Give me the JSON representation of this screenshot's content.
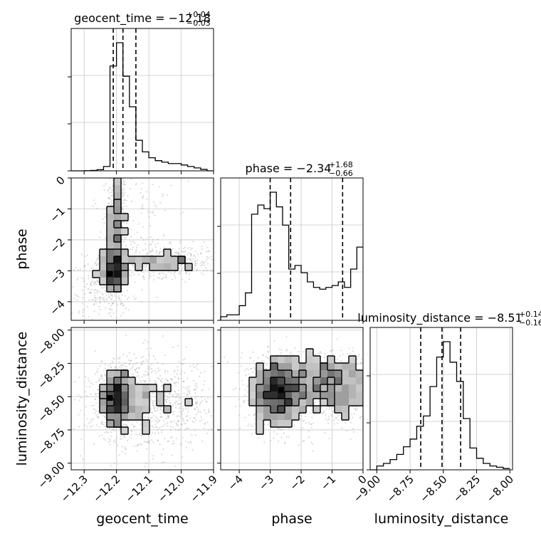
{
  "chart_data": {
    "type": "corner",
    "parameters": [
      "geocent_time",
      "phase",
      "luminosity_distance"
    ],
    "axis_labels": {
      "geocent_time": "geocent_time",
      "phase": "phase",
      "luminosity_distance": "luminosity_distance"
    },
    "titles": [
      {
        "param": "geocent_time",
        "prefix": "geocent_time = ",
        "median": "−12.18",
        "plus": "+0.04",
        "minus": "−0.03"
      },
      {
        "param": "phase",
        "prefix": "phase = ",
        "median": "−2.34",
        "plus": "+1.68",
        "minus": "−0.66"
      },
      {
        "param": "luminosity_distance",
        "prefix": "luminosity_distance = ",
        "median": "−8.51",
        "plus": "+0.14",
        "minus": "−0.16"
      }
    ],
    "ranges": {
      "geocent_time": [
        -12.34,
        -11.9
      ],
      "phase": [
        -4.6,
        0.0
      ],
      "luminosity_distance": [
        -9.05,
        -7.98
      ]
    },
    "ticks": {
      "geocent_time": [
        {
          "v": -12.3,
          "label": "−12.3"
        },
        {
          "v": -12.2,
          "label": "−12.2"
        },
        {
          "v": -12.1,
          "label": "−12.1"
        },
        {
          "v": -12.0,
          "label": "−12.0"
        },
        {
          "v": -11.9,
          "label": "−11.9"
        }
      ],
      "phase": [
        {
          "v": -4,
          "label": "−4"
        },
        {
          "v": -3,
          "label": "−3"
        },
        {
          "v": -2,
          "label": "−2"
        },
        {
          "v": -1,
          "label": "−1"
        },
        {
          "v": 0,
          "label": "0"
        }
      ],
      "luminosity_distance": [
        {
          "v": -9.0,
          "label": "−9.00"
        },
        {
          "v": -8.75,
          "label": "−8.75"
        },
        {
          "v": -8.5,
          "label": "−8.50"
        },
        {
          "v": -8.25,
          "label": "−8.25"
        },
        {
          "v": -8.0,
          "label": "−8.00"
        }
      ]
    },
    "histograms": {
      "geocent_time": {
        "bins": [
          -12.34,
          -12.32,
          -12.3,
          -12.28,
          -12.26,
          -12.24,
          -12.22,
          -12.2,
          -12.18,
          -12.16,
          -12.14,
          -12.12,
          -12.1,
          -12.08,
          -12.06,
          -12.04,
          -12.02,
          -12.0,
          -11.98,
          -11.96,
          -11.94,
          -11.92,
          -11.9
        ],
        "counts": [
          0,
          0,
          0.1,
          0.3,
          0.8,
          3,
          72,
          88,
          65,
          44,
          21,
          13,
          9,
          7,
          6,
          5,
          5,
          4,
          3,
          2,
          1,
          0
        ],
        "quantiles": [
          -12.21,
          -12.18,
          -12.14
        ]
      },
      "phase": {
        "bins": [
          -4.6,
          -4.4,
          -4.2,
          -4.0,
          -3.8,
          -3.6,
          -3.4,
          -3.2,
          -3.0,
          -2.8,
          -2.6,
          -2.4,
          -2.2,
          -2.0,
          -1.8,
          -1.6,
          -1.4,
          -1.2,
          -1.0,
          -0.8,
          -0.6,
          -0.4,
          -0.2,
          0.0
        ],
        "counts": [
          2,
          3,
          3,
          8,
          15,
          58,
          63,
          61,
          70,
          62,
          52,
          28,
          30,
          26,
          21,
          18,
          17,
          18,
          19,
          21,
          18,
          28,
          40
        ],
        "quantiles": [
          -3.0,
          -2.34,
          -0.66
        ]
      },
      "luminosity_distance": {
        "bins": [
          -9.05,
          -9.0,
          -8.95,
          -8.9,
          -8.85,
          -8.8,
          -8.75,
          -8.7,
          -8.65,
          -8.6,
          -8.55,
          -8.5,
          -8.45,
          -8.4,
          -8.35,
          -8.3,
          -8.25,
          -8.2,
          -8.15,
          -8.1,
          -8.05,
          -8.0
        ],
        "counts": [
          0,
          3,
          5,
          8,
          12,
          18,
          24,
          34,
          42,
          65,
          88,
          100,
          84,
          69,
          40,
          17,
          9,
          5,
          3,
          2,
          1
        ],
        "quantiles": [
          -8.67,
          -8.51,
          -8.37
        ]
      }
    },
    "scatter_2d": [
      {
        "x": "geocent_time",
        "y": "phase",
        "clusters": [
          {
            "cx": -12.2,
            "cy": -1.5,
            "sx": 0.015,
            "sy": 1.1,
            "n": 600
          },
          {
            "cx": -12.21,
            "cy": -3.0,
            "sx": 0.02,
            "sy": 0.35,
            "n": 500
          },
          {
            "cx": -12.05,
            "cy": -2.7,
            "sx": 0.08,
            "sy": 0.25,
            "n": 520
          },
          {
            "cx": -12.25,
            "cy": -3.6,
            "sx": 0.05,
            "sy": 0.45,
            "n": 200
          },
          {
            "cx": -12.15,
            "cy": -1.5,
            "sx": 0.06,
            "sy": 1.2,
            "n": 150
          }
        ],
        "peak": {
          "x": -12.22,
          "y": -3.1
        }
      },
      {
        "x": "geocent_time",
        "y": "luminosity_distance",
        "clusters": [
          {
            "cx": -12.2,
            "cy": -8.52,
            "sx": 0.03,
            "sy": 0.12,
            "n": 900
          },
          {
            "cx": -12.09,
            "cy": -8.55,
            "sx": 0.09,
            "sy": 0.17,
            "n": 900
          }
        ],
        "peak": {
          "x": -12.22,
          "y": -8.51
        }
      },
      {
        "x": "phase",
        "y": "luminosity_distance",
        "clusters": [
          {
            "cx": -2.8,
            "cy": -8.48,
            "sx": 0.45,
            "sy": 0.13,
            "n": 900
          },
          {
            "cx": -1.0,
            "cy": -8.45,
            "sx": 0.9,
            "sy": 0.13,
            "n": 800
          },
          {
            "cx": -1.5,
            "cy": -8.3,
            "sx": 1.2,
            "sy": 0.08,
            "n": 300
          }
        ],
        "peak": {
          "x": -2.65,
          "y": -8.45
        }
      }
    ],
    "grid": true
  }
}
